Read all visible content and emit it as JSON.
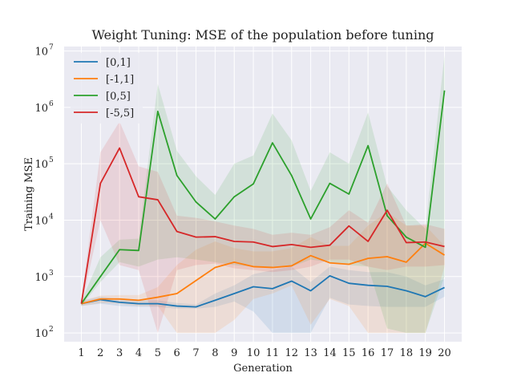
{
  "chart_data": {
    "type": "line",
    "title": "Weight Tuning: MSE of the population before tuning",
    "xlabel": "Generation",
    "ylabel": "Training MSE",
    "yscale": "log",
    "ylim": [
      70,
      12000000
    ],
    "xlim": [
      0.1,
      20.9
    ],
    "grid": true,
    "legend_position": "top-left",
    "x": [
      1,
      2,
      3,
      4,
      5,
      6,
      7,
      8,
      9,
      10,
      11,
      12,
      13,
      14,
      15,
      16,
      17,
      18,
      19,
      20
    ],
    "x_tick_labels": [
      "1",
      "2",
      "3",
      "4",
      "5",
      "6",
      "7",
      "8",
      "9",
      "10",
      "11",
      "12",
      "13",
      "14",
      "15",
      "16",
      "17",
      "18",
      "19",
      "20"
    ],
    "y_ticks": [
      100,
      1000,
      10000,
      100000,
      1000000,
      10000000
    ],
    "y_tick_labels": [
      {
        "base": "10",
        "exp": "2"
      },
      {
        "base": "10",
        "exp": "3"
      },
      {
        "base": "10",
        "exp": "4"
      },
      {
        "base": "10",
        "exp": "5"
      },
      {
        "base": "10",
        "exp": "6"
      },
      {
        "base": "10",
        "exp": "7"
      }
    ],
    "series": [
      {
        "name": "[0,1]",
        "color": "#1f77b4",
        "values": [
          330,
          390,
          350,
          330,
          330,
          300,
          290,
          380,
          500,
          660,
          610,
          830,
          560,
          1030,
          760,
          700,
          670,
          560,
          440,
          640
        ],
        "lower": [
          300,
          330,
          300,
          290,
          290,
          270,
          270,
          290,
          360,
          240,
          100,
          100,
          100,
          420,
          320,
          300,
          290,
          290,
          290,
          440
        ],
        "upper": [
          370,
          440,
          400,
          380,
          380,
          340,
          320,
          500,
          700,
          1100,
          1300,
          1500,
          800,
          1500,
          1300,
          1200,
          1200,
          1000,
          700,
          900
        ]
      },
      {
        "name": "[-1,1]",
        "color": "#ff7f0e",
        "values": [
          330,
          400,
          400,
          380,
          430,
          500,
          850,
          1450,
          1800,
          1500,
          1450,
          1550,
          2350,
          1750,
          1650,
          2100,
          2250,
          1800,
          3900,
          2400
        ],
        "lower": [
          300,
          340,
          330,
          300,
          300,
          100,
          100,
          100,
          170,
          400,
          500,
          700,
          140,
          400,
          300,
          100,
          100,
          100,
          100,
          1500
        ],
        "upper": [
          370,
          460,
          470,
          470,
          650,
          1600,
          3000,
          4200,
          3200,
          2800,
          2800,
          3200,
          5000,
          3500,
          3500,
          8000,
          14000,
          8000,
          8000,
          3500
        ]
      },
      {
        "name": "[0,5]",
        "color": "#2ca02c",
        "values": [
          330,
          1000,
          3000,
          2900,
          850000,
          62000,
          21000,
          10500,
          26000,
          44000,
          235000,
          62000,
          10500,
          45000,
          29000,
          210000,
          12000,
          5000,
          3300,
          2000000
        ],
        "lower": [
          300,
          800,
          1800,
          1500,
          2000,
          2200,
          2000,
          1800,
          1600,
          1500,
          1400,
          1500,
          2000,
          1800,
          1600,
          1500,
          120,
          100,
          100,
          1000
        ],
        "upper": [
          370,
          2200,
          4500,
          4700,
          2600000,
          170000,
          60000,
          28000,
          100000,
          140000,
          780000,
          260000,
          33000,
          160000,
          100000,
          810000,
          40000,
          15000,
          7000,
          8500000
        ]
      },
      {
        "name": "[-5,5]",
        "color": "#d62728",
        "values": [
          330,
          45000,
          190000,
          26000,
          23000,
          6300,
          5000,
          5100,
          4200,
          4100,
          3400,
          3700,
          3300,
          3600,
          7900,
          4200,
          15000,
          4000,
          4100,
          3400
        ],
        "lower": [
          300,
          10000,
          1600,
          1300,
          100,
          1300,
          1600,
          1700,
          1400,
          1300,
          1200,
          1300,
          1500,
          2000,
          2000,
          1500,
          1300,
          1500,
          1500,
          1600
        ],
        "upper": [
          370,
          160000,
          560000,
          90000,
          72000,
          12000,
          11000,
          9500,
          8000,
          7000,
          5500,
          6000,
          5500,
          7500,
          15000,
          9000,
          45000,
          8000,
          8500,
          7000
        ]
      }
    ]
  }
}
